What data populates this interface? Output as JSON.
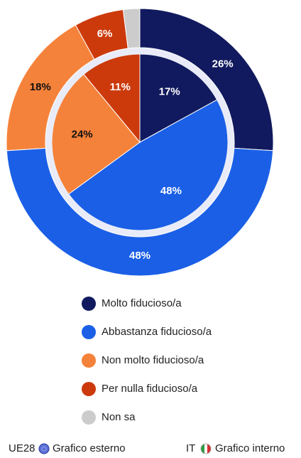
{
  "chart_data": {
    "type": "nested-pie",
    "categories": [
      "Molto fiducioso/a",
      "Abbastanza fiducioso/a",
      "Non molto fiducioso/a",
      "Per nulla fiducioso/a",
      "Non sa"
    ],
    "colors": [
      "#111a5e",
      "#1a5fe6",
      "#f5823a",
      "#cc3a0c",
      "#cccccc"
    ],
    "series": [
      {
        "name": "UE28",
        "caption": "Grafico esterno",
        "ring": "outer",
        "values": [
          26,
          48,
          18,
          6,
          2
        ],
        "value_labels": [
          "26%",
          "48%",
          "18%",
          "6%",
          null
        ]
      },
      {
        "name": "IT",
        "caption": "Grafico interno",
        "ring": "inner",
        "values": [
          17,
          48,
          24,
          11,
          0
        ],
        "value_labels": [
          "17%",
          "48%",
          "24%",
          "11%",
          null
        ]
      }
    ]
  }
}
